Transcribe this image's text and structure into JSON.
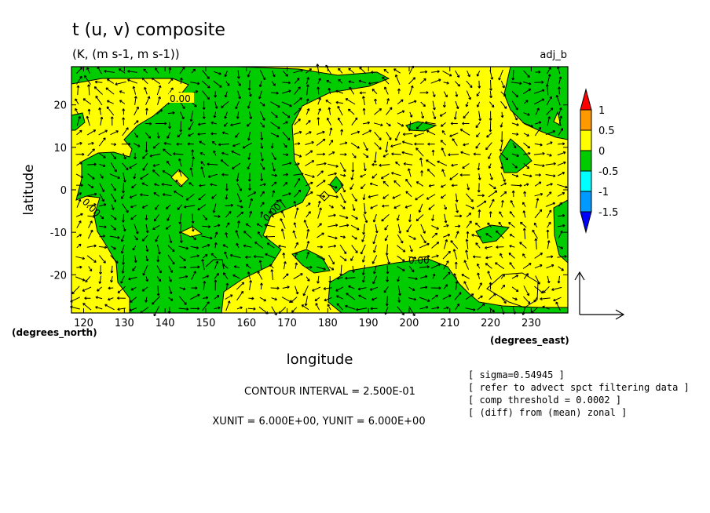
{
  "chart_data": {
    "type": "heatmap",
    "title": "t (u, v) composite",
    "subtitle": "(K, (m s-1, m s-1))",
    "tag": "adj_b",
    "xlabel": "longitude",
    "ylabel": "latitude",
    "x_unit_label": "(degrees_east)",
    "y_unit_label": "(degrees_north)",
    "xlim": [
      117,
      239
    ],
    "ylim": [
      -29,
      29
    ],
    "x_ticks": [
      120,
      130,
      140,
      150,
      160,
      170,
      180,
      190,
      200,
      210,
      220,
      230
    ],
    "y_ticks": [
      20,
      10,
      0,
      -10,
      -20
    ],
    "contour_labels": [
      "0.00",
      "0.00",
      "0.00",
      "0.00"
    ],
    "colorbar": {
      "levels": [
        "1",
        "0.5",
        "0",
        "-0.5",
        "-1",
        "-1.5"
      ],
      "colors": [
        "#ff0000",
        "#ff9900",
        "#ffff00",
        "#00cc00",
        "#00ffff",
        "#0099ff",
        "#0000ff"
      ]
    },
    "contour_interval": "CONTOUR INTERVAL = 2.500E-01",
    "vector_units": "XUNIT = 6.000E+00, YUNIT = 6.000E+00",
    "notes": [
      "[ sigma=0.54945 ]",
      "[ refer to advect spct filtering data ]",
      "[ comp threshold = 0.0002 ]",
      "[ (diff) from (mean) zonal ]"
    ]
  }
}
